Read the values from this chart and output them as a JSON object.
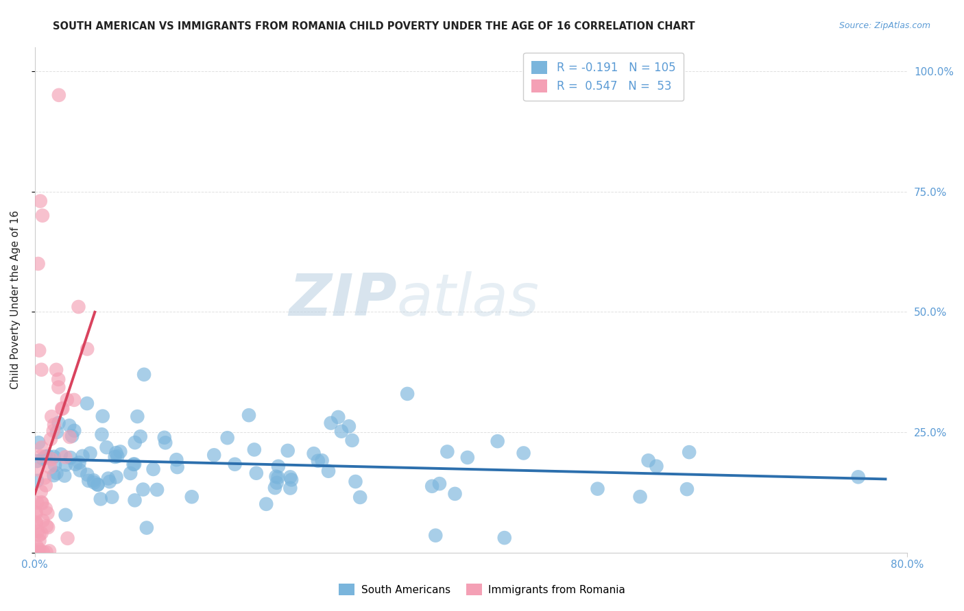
{
  "title": "SOUTH AMERICAN VS IMMIGRANTS FROM ROMANIA CHILD POVERTY UNDER THE AGE OF 16 CORRELATION CHART",
  "source": "Source: ZipAtlas.com",
  "ylabel": "Child Poverty Under the Age of 16",
  "xlim": [
    0.0,
    0.8
  ],
  "ylim": [
    0.0,
    1.05
  ],
  "blue_color": "#7ab5dc",
  "pink_color": "#f4a0b5",
  "blue_line_color": "#2c6fad",
  "pink_line_color": "#d9435e",
  "grid_color": "#e0e0e0",
  "title_color": "#222222",
  "axis_color": "#5b9bd5",
  "watermark_color": "#c8dff0",
  "legend_blue_r": "R = -0.191",
  "legend_blue_n": "N = 105",
  "legend_pink_r": "R =  0.547",
  "legend_pink_n": "N =  53",
  "bottom_label_blue": "South Americans",
  "bottom_label_pink": "Immigrants from Romania"
}
